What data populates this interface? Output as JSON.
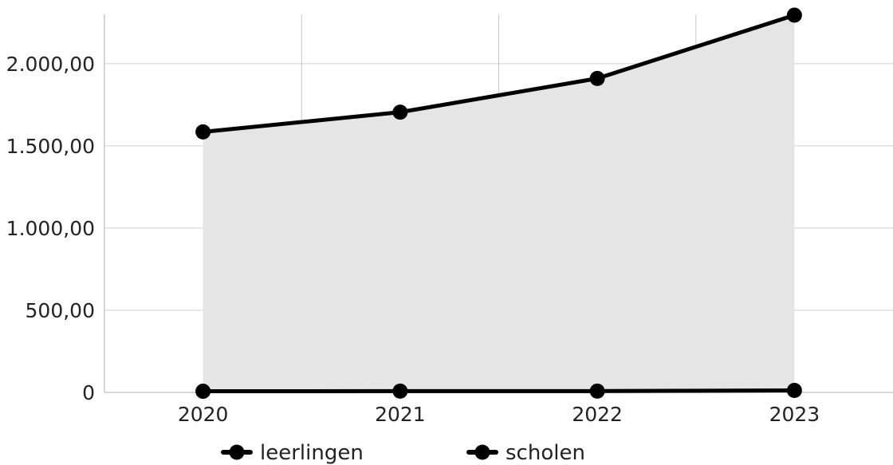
{
  "chart_data": {
    "type": "area",
    "title": "",
    "xlabel": "",
    "ylabel": "",
    "categories": [
      "2020",
      "2021",
      "2022",
      "2023"
    ],
    "ylim": [
      0,
      2300
    ],
    "yticks": [
      0,
      500,
      1000,
      1500,
      2000
    ],
    "ytick_labels": [
      "0",
      "500,00",
      "1.000,00",
      "1.500,00",
      "2.000,00"
    ],
    "grid": true,
    "legend_position": "bottom-center",
    "series": [
      {
        "name": "leerlingen",
        "values": [
          1585,
          1705,
          1910,
          2295
        ],
        "color": "#000000",
        "fill": "#e5e5e5"
      },
      {
        "name": "scholen",
        "values": [
          7,
          8,
          8,
          12
        ],
        "color": "#000000",
        "fill": "#e5e5e5"
      }
    ]
  }
}
